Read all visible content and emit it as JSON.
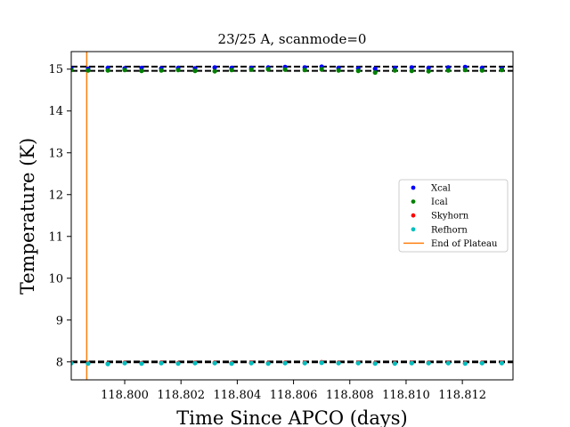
{
  "chart_data": {
    "type": "scatter",
    "title": "23/25 A, scanmode=0",
    "xlabel": "Time Since APCO (days)",
    "ylabel": "Temperature (K)",
    "xlim": [
      118.7981,
      118.8138
    ],
    "ylim": [
      7.57,
      15.42
    ],
    "xticks": [
      118.8,
      118.802,
      118.804,
      118.806,
      118.808,
      118.81,
      118.812
    ],
    "xtick_labels": [
      "118.800",
      "118.802",
      "118.804",
      "118.806",
      "118.808",
      "118.810",
      "118.812"
    ],
    "yticks": [
      8,
      9,
      10,
      11,
      12,
      13,
      14,
      15
    ],
    "ytick_labels": [
      "8",
      "9",
      "10",
      "11",
      "12",
      "13",
      "14",
      "15"
    ],
    "grid": false,
    "legend_position": "center-right",
    "x": [
      118.7981,
      118.7987,
      118.7994,
      118.8,
      118.8006,
      118.8013,
      118.8019,
      118.8025,
      118.8032,
      118.8038,
      118.8045,
      118.8051,
      118.8057,
      118.8064,
      118.807,
      118.8076,
      118.8083,
      118.8089,
      118.8096,
      118.8102,
      118.8108,
      118.8115,
      118.8121,
      118.8127,
      118.8134
    ],
    "series": [
      {
        "name": "Xcal",
        "color": "#0000ff",
        "marker": "circle",
        "values": [
          15.02,
          15.01,
          15.03,
          15.02,
          15.03,
          15.02,
          15.03,
          15.02,
          15.04,
          15.03,
          15.03,
          15.04,
          15.05,
          15.04,
          15.06,
          15.03,
          15.02,
          15.01,
          15.03,
          15.04,
          15.03,
          15.04,
          15.05,
          15.03,
          15.01
        ]
      },
      {
        "name": "Ical",
        "color": "#008000",
        "marker": "circle",
        "values": [
          14.98,
          14.97,
          14.97,
          14.98,
          14.96,
          14.97,
          14.98,
          14.96,
          14.95,
          14.98,
          14.99,
          15.0,
          14.99,
          14.98,
          15.0,
          14.97,
          14.96,
          14.92,
          14.97,
          14.96,
          14.95,
          14.97,
          14.98,
          14.97,
          14.98
        ]
      },
      {
        "name": "Skyhorn",
        "color": "#ff0000",
        "marker": "circle",
        "values": [
          7.98,
          7.97,
          7.96,
          7.98,
          7.97,
          7.98,
          7.97,
          7.98,
          7.98,
          7.97,
          7.98,
          7.97,
          7.98,
          7.98,
          7.99,
          7.98,
          7.98,
          7.97,
          7.97,
          7.98,
          7.98,
          7.98,
          7.97,
          7.98,
          7.98
        ]
      },
      {
        "name": "Refhorn",
        "color": "#00bfbf",
        "marker": "circle",
        "values": [
          7.97,
          7.96,
          7.95,
          7.97,
          7.96,
          7.97,
          7.96,
          7.97,
          7.97,
          7.96,
          7.97,
          7.96,
          7.97,
          7.97,
          7.98,
          7.97,
          7.97,
          7.96,
          7.96,
          7.97,
          7.97,
          7.97,
          7.96,
          7.97,
          7.97
        ]
      }
    ],
    "reference_lines": {
      "color": "#000000",
      "style": "dashed",
      "y": [
        15.06,
        14.96,
        8.01,
        7.99
      ]
    },
    "vertical_line": {
      "name": "End of Plateau",
      "color": "#ff7f0e",
      "x": 118.79865
    }
  }
}
